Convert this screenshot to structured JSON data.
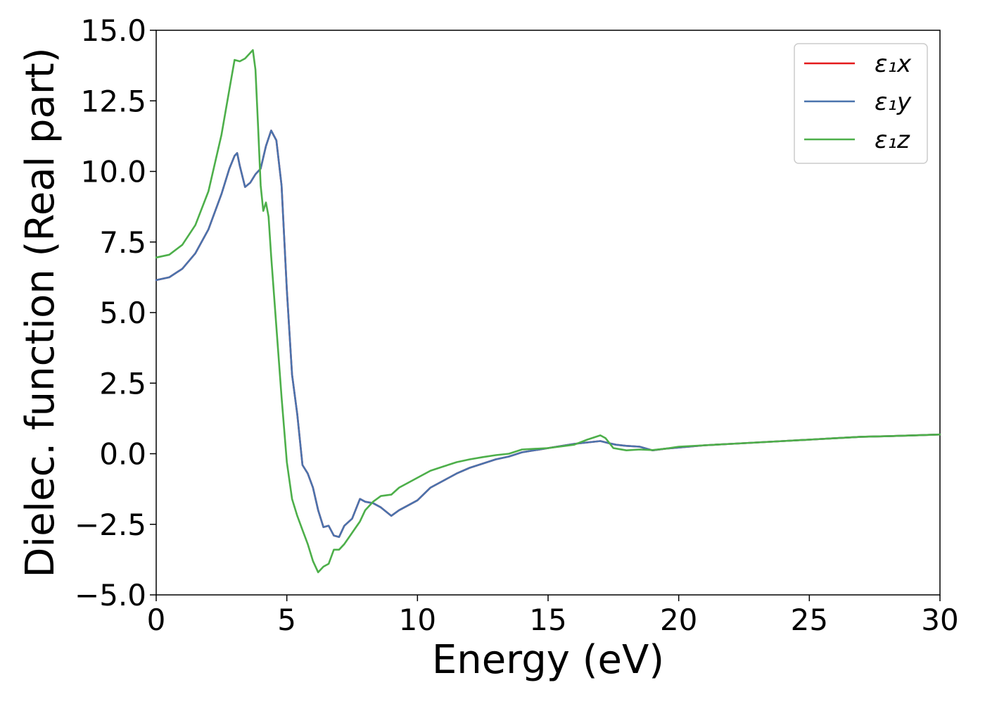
{
  "chart_data": {
    "type": "line",
    "title": "",
    "xlabel": "Energy (eV)",
    "ylabel": "Dielec. function (Real part)",
    "xlim": [
      0,
      30
    ],
    "ylim": [
      -5.0,
      15.0
    ],
    "xticks": [
      0,
      5,
      10,
      15,
      20,
      25,
      30
    ],
    "xtick_labels": [
      "0",
      "5",
      "10",
      "15",
      "20",
      "25",
      "30"
    ],
    "yticks": [
      -5.0,
      -2.5,
      0.0,
      2.5,
      5.0,
      7.5,
      10.0,
      12.5,
      15.0
    ],
    "ytick_labels": [
      "−5.0",
      "−2.5",
      "0.0",
      "2.5",
      "5.0",
      "7.5",
      "10.0",
      "12.5",
      "15.0"
    ],
    "grid": false,
    "legend_position": "top-right",
    "series": [
      {
        "name": "ε₁x",
        "color": "#e41a1c",
        "x": [
          0,
          0.5,
          1.0,
          1.5,
          2.0,
          2.5,
          2.8,
          3.0,
          3.1,
          3.2,
          3.4,
          3.6,
          3.8,
          4.0,
          4.2,
          4.4,
          4.6,
          4.8,
          5.0,
          5.2,
          5.4,
          5.6,
          5.8,
          6.0,
          6.2,
          6.4,
          6.6,
          6.8,
          7.0,
          7.2,
          7.5,
          7.8,
          8.0,
          8.3,
          8.6,
          9.0,
          9.3,
          9.6,
          10.0,
          10.5,
          11.0,
          11.5,
          12.0,
          12.5,
          13.0,
          13.5,
          14.0,
          15.0,
          16.0,
          17.0,
          17.3,
          17.6,
          18.0,
          18.5,
          19.0,
          19.5,
          20.0,
          21.0,
          22.0,
          23.0,
          24.0,
          25.0,
          26.0,
          27.0,
          28.0,
          29.0,
          30.0
        ],
        "values": [
          6.15,
          6.25,
          6.55,
          7.1,
          7.95,
          9.2,
          10.1,
          10.55,
          10.65,
          10.2,
          9.45,
          9.6,
          9.9,
          10.1,
          10.9,
          11.45,
          11.1,
          9.5,
          5.8,
          2.8,
          1.4,
          -0.4,
          -0.7,
          -1.2,
          -2.0,
          -2.6,
          -2.55,
          -2.9,
          -2.95,
          -2.55,
          -2.3,
          -1.6,
          -1.7,
          -1.75,
          -1.9,
          -2.2,
          -2.0,
          -1.85,
          -1.65,
          -1.2,
          -0.95,
          -0.7,
          -0.5,
          -0.35,
          -0.2,
          -0.1,
          0.05,
          0.2,
          0.35,
          0.45,
          0.38,
          0.32,
          0.28,
          0.25,
          0.12,
          0.18,
          0.22,
          0.3,
          0.35,
          0.4,
          0.45,
          0.5,
          0.55,
          0.6,
          0.62,
          0.65,
          0.68
        ]
      },
      {
        "name": "ε₁y",
        "color": "#4a73ad",
        "x": [
          0,
          0.5,
          1.0,
          1.5,
          2.0,
          2.5,
          2.8,
          3.0,
          3.1,
          3.2,
          3.4,
          3.6,
          3.8,
          4.0,
          4.2,
          4.4,
          4.6,
          4.8,
          5.0,
          5.2,
          5.4,
          5.6,
          5.8,
          6.0,
          6.2,
          6.4,
          6.6,
          6.8,
          7.0,
          7.2,
          7.5,
          7.8,
          8.0,
          8.3,
          8.6,
          9.0,
          9.3,
          9.6,
          10.0,
          10.5,
          11.0,
          11.5,
          12.0,
          12.5,
          13.0,
          13.5,
          14.0,
          15.0,
          16.0,
          17.0,
          17.3,
          17.6,
          18.0,
          18.5,
          19.0,
          19.5,
          20.0,
          21.0,
          22.0,
          23.0,
          24.0,
          25.0,
          26.0,
          27.0,
          28.0,
          29.0,
          30.0
        ],
        "values": [
          6.15,
          6.25,
          6.55,
          7.1,
          7.95,
          9.2,
          10.1,
          10.55,
          10.65,
          10.2,
          9.45,
          9.6,
          9.9,
          10.1,
          10.9,
          11.45,
          11.1,
          9.5,
          5.8,
          2.8,
          1.4,
          -0.4,
          -0.7,
          -1.2,
          -2.0,
          -2.6,
          -2.55,
          -2.9,
          -2.95,
          -2.55,
          -2.3,
          -1.6,
          -1.7,
          -1.75,
          -1.9,
          -2.2,
          -2.0,
          -1.85,
          -1.65,
          -1.2,
          -0.95,
          -0.7,
          -0.5,
          -0.35,
          -0.2,
          -0.1,
          0.05,
          0.2,
          0.35,
          0.45,
          0.38,
          0.32,
          0.28,
          0.25,
          0.12,
          0.18,
          0.22,
          0.3,
          0.35,
          0.4,
          0.45,
          0.5,
          0.55,
          0.6,
          0.62,
          0.65,
          0.68
        ]
      },
      {
        "name": "ε₁z",
        "color": "#4daf4a",
        "x": [
          0,
          0.5,
          1.0,
          1.5,
          2.0,
          2.5,
          2.8,
          3.0,
          3.2,
          3.4,
          3.6,
          3.7,
          3.8,
          3.9,
          4.0,
          4.1,
          4.2,
          4.3,
          4.4,
          4.6,
          4.8,
          5.0,
          5.2,
          5.4,
          5.6,
          5.8,
          6.0,
          6.2,
          6.4,
          6.6,
          6.8,
          7.0,
          7.2,
          7.5,
          7.8,
          8.0,
          8.3,
          8.6,
          9.0,
          9.3,
          9.6,
          10.0,
          10.5,
          11.0,
          11.5,
          12.0,
          12.5,
          13.0,
          13.5,
          14.0,
          15.0,
          16.0,
          16.5,
          17.0,
          17.2,
          17.5,
          18.0,
          18.5,
          19.0,
          19.5,
          20.0,
          21.0,
          22.0,
          23.0,
          24.0,
          25.0,
          26.0,
          27.0,
          28.0,
          29.0,
          30.0
        ],
        "values": [
          6.95,
          7.05,
          7.4,
          8.1,
          9.3,
          11.3,
          12.9,
          13.95,
          13.9,
          14.0,
          14.2,
          14.3,
          13.6,
          11.6,
          9.5,
          8.6,
          8.9,
          8.4,
          7.0,
          4.5,
          2.0,
          -0.3,
          -1.6,
          -2.2,
          -2.7,
          -3.2,
          -3.8,
          -4.2,
          -4.0,
          -3.9,
          -3.4,
          -3.4,
          -3.2,
          -2.8,
          -2.4,
          -2.0,
          -1.7,
          -1.5,
          -1.45,
          -1.2,
          -1.05,
          -0.85,
          -0.6,
          -0.45,
          -0.3,
          -0.2,
          -0.12,
          -0.05,
          0.0,
          0.15,
          0.2,
          0.32,
          0.5,
          0.65,
          0.55,
          0.2,
          0.12,
          0.15,
          0.13,
          0.18,
          0.25,
          0.3,
          0.35,
          0.4,
          0.45,
          0.5,
          0.55,
          0.6,
          0.62,
          0.65,
          0.68
        ]
      }
    ]
  }
}
